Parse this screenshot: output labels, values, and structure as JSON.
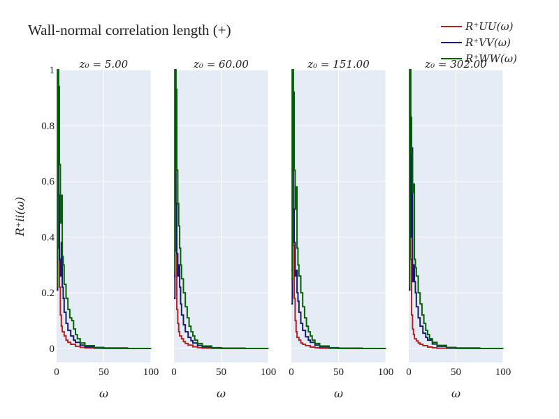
{
  "title": "Wall-normal correlation length (+)",
  "legend": {
    "placement": "top-right",
    "entries": [
      {
        "label": "R⁺UU(ω)",
        "color": "#b22222"
      },
      {
        "label": "R⁺VV(ω)",
        "color": "#191970"
      },
      {
        "label": "R⁺WW(ω)",
        "color": "#006400"
      }
    ]
  },
  "chart_data": {
    "type": "line",
    "ylabel": "R⁺ii(ω)",
    "xlabel": "ω",
    "xlim": [
      0,
      100
    ],
    "ylim": [
      -0.05,
      1.0
    ],
    "xticks": [
      0,
      50,
      100
    ],
    "yticks": [
      0,
      0.2,
      0.4,
      0.6,
      0.8,
      1
    ],
    "ytick_labels": [
      "0",
      "0.2",
      "0.4",
      "0.6",
      "0.8",
      "1"
    ],
    "grid": true,
    "panels": [
      {
        "subtitle": "z₀ = 5.00",
        "series": [
          {
            "color": "#b22222",
            "x": [
              0,
              1,
              2,
              3,
              4,
              5,
              6,
              8,
              10,
              12,
              15,
              20,
              25,
              30,
              40,
              50,
              75,
              100
            ],
            "y": [
              0.21,
              1.0,
              0.36,
              0.22,
              0.12,
              0.08,
              0.06,
              0.045,
              0.03,
              0.022,
              0.015,
              0.008,
              0.004,
              0.002,
              0.001,
              0.0005,
              0.0002,
              0.0
            ]
          },
          {
            "color": "#191970",
            "x": [
              0,
              1,
              2,
              3,
              4,
              5,
              6,
              7,
              8,
              10,
              12,
              15,
              18,
              20,
              25,
              30,
              40,
              50,
              75,
              100
            ],
            "y": [
              0.21,
              1.0,
              0.55,
              0.32,
              0.26,
              0.38,
              0.22,
              0.18,
              0.13,
              0.09,
              0.065,
              0.045,
              0.03,
              0.022,
              0.012,
              0.006,
              0.002,
              0.001,
              0.0,
              0.0
            ]
          },
          {
            "color": "#006400",
            "x": [
              0,
              1,
              2,
              3,
              4,
              5,
              6,
              7,
              8,
              10,
              12,
              14,
              16,
              18,
              20,
              22,
              25,
              30,
              40,
              50,
              75,
              100
            ],
            "y": [
              0.22,
              1.0,
              0.94,
              0.66,
              0.45,
              0.55,
              0.33,
              0.3,
              0.23,
              0.18,
              0.14,
              0.11,
              0.1,
              0.07,
              0.05,
              0.035,
              0.02,
              0.01,
              0.004,
              0.002,
              0.0,
              0.0
            ]
          }
        ]
      },
      {
        "subtitle": "z₀ = 60.00",
        "series": [
          {
            "color": "#b22222",
            "x": [
              0,
              1,
              2,
              3,
              4,
              5,
              6,
              8,
              10,
              12,
              15,
              20,
              25,
              30,
              40,
              50,
              75,
              100
            ],
            "y": [
              0.26,
              1.0,
              0.35,
              0.14,
              0.09,
              0.06,
              0.045,
              0.035,
              0.025,
              0.018,
              0.012,
              0.006,
              0.003,
              0.0015,
              0.0007,
              0.0003,
              0.0001,
              0.0
            ]
          },
          {
            "color": "#191970",
            "x": [
              0,
              1,
              2,
              3,
              4,
              5,
              6,
              7,
              8,
              10,
              12,
              15,
              18,
              20,
              25,
              30,
              40,
              50,
              75,
              100
            ],
            "y": [
              0.18,
              1.0,
              0.52,
              0.34,
              0.26,
              0.3,
              0.22,
              0.16,
              0.12,
              0.085,
              0.06,
              0.04,
              0.028,
              0.02,
              0.011,
              0.006,
              0.002,
              0.001,
              0.0,
              0.0
            ]
          },
          {
            "color": "#006400",
            "x": [
              0,
              1,
              2,
              3,
              4,
              5,
              6,
              7,
              8,
              10,
              12,
              14,
              16,
              18,
              20,
              22,
              25,
              30,
              40,
              50,
              75,
              100
            ],
            "y": [
              0.27,
              1.0,
              0.93,
              0.64,
              0.52,
              0.44,
              0.36,
              0.3,
              0.25,
              0.2,
              0.15,
              0.11,
              0.08,
              0.06,
              0.045,
              0.03,
              0.018,
              0.009,
              0.003,
              0.001,
              0.0,
              0.0
            ]
          }
        ]
      },
      {
        "subtitle": "z₀ = 151.00",
        "series": [
          {
            "color": "#b22222",
            "x": [
              0,
              1,
              2,
              3,
              4,
              5,
              6,
              8,
              10,
              12,
              15,
              20,
              25,
              30,
              40,
              50,
              75,
              100
            ],
            "y": [
              0.28,
              1.0,
              0.37,
              0.18,
              0.1,
              0.06,
              0.04,
              0.03,
              0.02,
              0.015,
              0.01,
              0.005,
              0.0025,
              0.0012,
              0.0006,
              0.0003,
              0.0001,
              0.0
            ]
          },
          {
            "color": "#191970",
            "x": [
              0,
              1,
              2,
              3,
              4,
              5,
              6,
              7,
              8,
              10,
              12,
              15,
              18,
              20,
              25,
              30,
              40,
              50,
              75,
              100
            ],
            "y": [
              0.16,
              1.0,
              0.5,
              0.38,
              0.26,
              0.28,
              0.2,
              0.17,
              0.13,
              0.09,
              0.065,
              0.042,
              0.03,
              0.022,
              0.012,
              0.006,
              0.002,
              0.001,
              0.0,
              0.0
            ]
          },
          {
            "color": "#006400",
            "x": [
              0,
              1,
              2,
              3,
              4,
              5,
              6,
              7,
              8,
              10,
              12,
              14,
              16,
              18,
              20,
              22,
              25,
              30,
              40,
              50,
              75,
              100
            ],
            "y": [
              0.25,
              1.0,
              0.92,
              0.64,
              0.5,
              0.58,
              0.36,
              0.3,
              0.26,
              0.2,
              0.15,
              0.11,
              0.08,
              0.06,
              0.045,
              0.03,
              0.018,
              0.009,
              0.003,
              0.001,
              0.0,
              0.0
            ]
          }
        ]
      },
      {
        "subtitle": "z₀ = 302.00",
        "series": [
          {
            "color": "#b22222",
            "x": [
              0,
              1,
              2,
              3,
              4,
              5,
              6,
              8,
              10,
              12,
              15,
              20,
              25,
              30,
              40,
              50,
              75,
              100
            ],
            "y": [
              0.21,
              1.0,
              0.32,
              0.12,
              0.07,
              0.05,
              0.035,
              0.027,
              0.02,
              0.015,
              0.01,
              0.005,
              0.0025,
              0.0012,
              0.0006,
              0.0003,
              0.0001,
              0.0
            ]
          },
          {
            "color": "#191970",
            "x": [
              0,
              1,
              2,
              3,
              4,
              5,
              6,
              7,
              8,
              10,
              12,
              15,
              18,
              20,
              25,
              30,
              40,
              50,
              75,
              100
            ],
            "y": [
              0.21,
              1.0,
              0.4,
              0.72,
              0.24,
              0.3,
              0.24,
              0.2,
              0.15,
              0.11,
              0.08,
              0.055,
              0.04,
              0.03,
              0.016,
              0.008,
              0.003,
              0.001,
              0.0,
              0.0
            ]
          },
          {
            "color": "#006400",
            "x": [
              0,
              1,
              2,
              3,
              4,
              5,
              6,
              7,
              8,
              10,
              12,
              14,
              16,
              18,
              20,
              22,
              25,
              30,
              40,
              50,
              75,
              100
            ],
            "y": [
              0.22,
              1.0,
              0.83,
              0.7,
              0.56,
              0.59,
              0.32,
              0.29,
              0.26,
              0.2,
              0.16,
              0.12,
              0.09,
              0.065,
              0.05,
              0.035,
              0.022,
              0.011,
              0.004,
              0.002,
              0.0,
              0.0
            ]
          }
        ]
      }
    ]
  }
}
